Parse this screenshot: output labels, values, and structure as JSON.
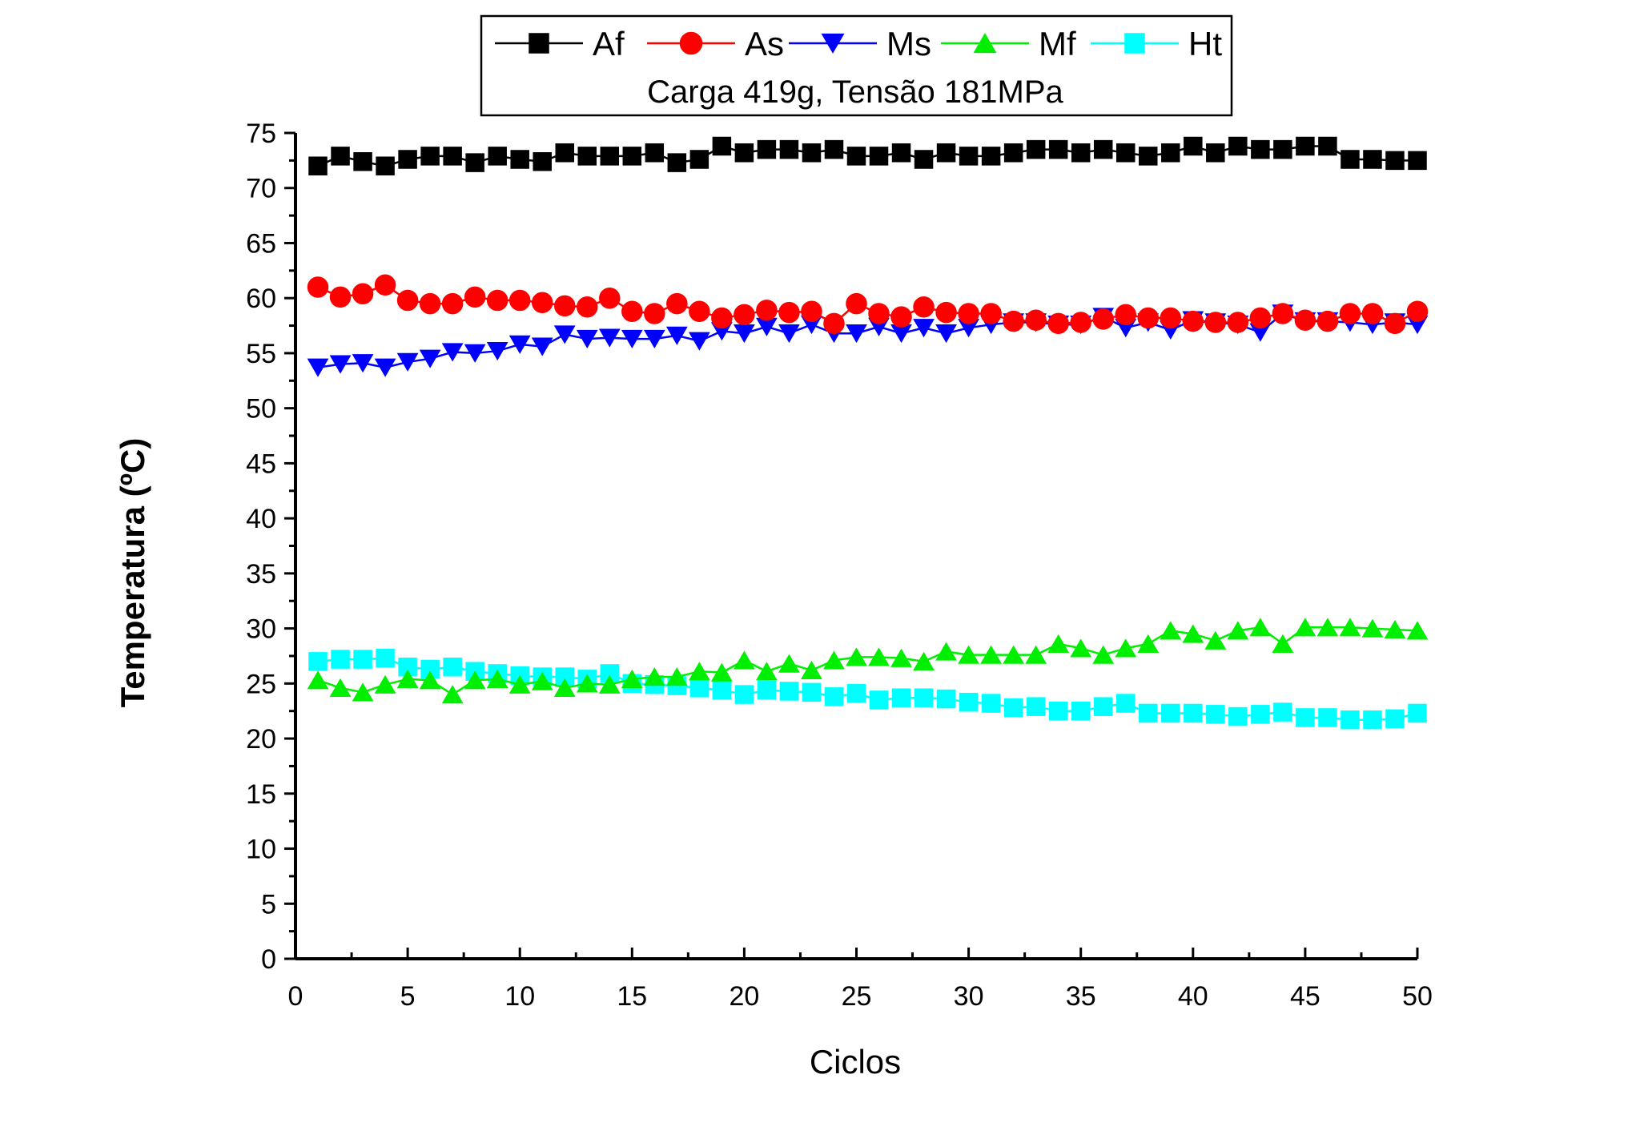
{
  "chart_data": {
    "type": "line",
    "title": "",
    "annotation": "Carga 419g, Tensão 181MPa",
    "xlabel": "Ciclos",
    "ylabel": "Temperatura (ºC)",
    "xlim": [
      0,
      50
    ],
    "ylim": [
      0,
      75
    ],
    "xticks": [
      "0",
      "5",
      "10",
      "15",
      "20",
      "25",
      "30",
      "35",
      "40",
      "45",
      "50"
    ],
    "yticks": [
      "0",
      "5",
      "10",
      "15",
      "20",
      "25",
      "30",
      "35",
      "40",
      "45",
      "50",
      "55",
      "60",
      "65",
      "70",
      "75"
    ],
    "grid": false,
    "legend_position": "top-center",
    "x": [
      1,
      2,
      3,
      4,
      5,
      6,
      7,
      8,
      9,
      10,
      11,
      12,
      13,
      14,
      15,
      16,
      17,
      18,
      19,
      20,
      21,
      22,
      23,
      24,
      25,
      26,
      27,
      28,
      29,
      30,
      31,
      32,
      33,
      34,
      35,
      36,
      37,
      38,
      39,
      40,
      41,
      42,
      43,
      44,
      45,
      46,
      47,
      48,
      49,
      50
    ],
    "series": [
      {
        "name": "Af",
        "color": "#000000",
        "marker": "square",
        "values": [
          72.0,
          72.9,
          72.4,
          72.0,
          72.6,
          72.9,
          72.9,
          72.3,
          72.9,
          72.6,
          72.4,
          73.2,
          72.9,
          72.9,
          72.9,
          73.2,
          72.3,
          72.6,
          73.8,
          73.2,
          73.5,
          73.5,
          73.2,
          73.5,
          72.9,
          72.9,
          73.2,
          72.6,
          73.2,
          72.9,
          72.9,
          73.2,
          73.5,
          73.5,
          73.2,
          73.5,
          73.2,
          72.9,
          73.2,
          73.8,
          73.2,
          73.8,
          73.5,
          73.5,
          73.8,
          73.8,
          72.6,
          72.6,
          72.5,
          72.5
        ]
      },
      {
        "name": "As",
        "color": "#ff0000",
        "marker": "circle",
        "values": [
          61.0,
          60.1,
          60.4,
          61.2,
          59.8,
          59.5,
          59.5,
          60.1,
          59.8,
          59.8,
          59.6,
          59.3,
          59.2,
          60.0,
          58.8,
          58.6,
          59.5,
          58.8,
          58.2,
          58.5,
          58.9,
          58.7,
          58.8,
          57.7,
          59.5,
          58.6,
          58.3,
          59.2,
          58.7,
          58.6,
          58.6,
          57.9,
          58.0,
          57.7,
          57.8,
          58.1,
          58.5,
          58.2,
          58.2,
          57.9,
          57.8,
          57.8,
          58.2,
          58.6,
          58.0,
          57.9,
          58.6,
          58.6,
          57.7,
          58.8
        ]
      },
      {
        "name": "Ms",
        "color": "#0000ff",
        "marker": "triangle-down",
        "values": [
          53.7,
          54.0,
          54.1,
          53.7,
          54.2,
          54.5,
          55.1,
          55.0,
          55.2,
          55.8,
          55.6,
          56.7,
          56.3,
          56.4,
          56.3,
          56.3,
          56.6,
          56.1,
          57.0,
          56.8,
          57.4,
          56.8,
          57.6,
          56.8,
          56.8,
          57.4,
          56.8,
          57.3,
          56.8,
          57.3,
          57.6,
          57.8,
          57.8,
          57.6,
          57.6,
          58.3,
          57.3,
          57.8,
          57.1,
          58.0,
          57.8,
          57.6,
          56.9,
          58.6,
          57.9,
          57.9,
          57.8,
          57.6,
          57.8,
          57.6
        ]
      },
      {
        "name": "Mf",
        "color": "#00ee00",
        "marker": "triangle-up",
        "values": [
          25.3,
          24.6,
          24.2,
          24.9,
          25.4,
          25.3,
          24.0,
          25.3,
          25.4,
          24.9,
          25.2,
          24.6,
          25.0,
          24.9,
          25.4,
          25.6,
          25.6,
          26.1,
          26.0,
          27.1,
          26.1,
          26.8,
          26.2,
          27.1,
          27.4,
          27.4,
          27.3,
          27.0,
          27.9,
          27.6,
          27.6,
          27.6,
          27.6,
          28.6,
          28.2,
          27.6,
          28.2,
          28.6,
          29.8,
          29.5,
          28.9,
          29.8,
          30.1,
          28.6,
          30.1,
          30.1,
          30.1,
          30.0,
          29.9,
          29.8
        ]
      },
      {
        "name": "Ht",
        "color": "#00ffff",
        "marker": "square",
        "values": [
          27.0,
          27.2,
          27.2,
          27.3,
          26.5,
          26.3,
          26.5,
          26.1,
          25.9,
          25.7,
          25.6,
          25.6,
          25.4,
          25.9,
          25.0,
          24.9,
          24.8,
          24.6,
          24.4,
          24.0,
          24.4,
          24.3,
          24.2,
          23.8,
          24.1,
          23.5,
          23.7,
          23.7,
          23.6,
          23.3,
          23.2,
          22.8,
          22.9,
          22.5,
          22.5,
          22.9,
          23.2,
          22.3,
          22.3,
          22.3,
          22.2,
          22.0,
          22.2,
          22.4,
          21.9,
          21.9,
          21.7,
          21.7,
          21.8,
          22.3
        ]
      }
    ]
  }
}
